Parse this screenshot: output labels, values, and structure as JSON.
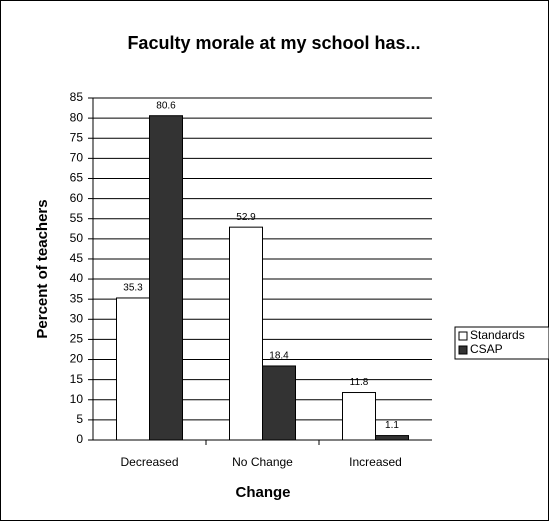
{
  "chart_data": {
    "type": "bar",
    "title": "Faculty morale at my school has...",
    "x_label": "Change",
    "y_label": "Percent of teachers",
    "categories": [
      "Decreased",
      "No Change",
      "Increased"
    ],
    "series": [
      {
        "name": "Standards",
        "color": "#ffffff",
        "values": [
          35.3,
          52.9,
          11.8
        ]
      },
      {
        "name": "CSAP",
        "color": "#333333",
        "values": [
          80.6,
          18.4,
          1.1
        ]
      }
    ],
    "ylim": [
      0,
      85
    ],
    "yticks": [
      0,
      5,
      10,
      15,
      20,
      25,
      30,
      35,
      40,
      45,
      50,
      55,
      60,
      65,
      70,
      75,
      80,
      85
    ],
    "grid": true,
    "legend": "right"
  }
}
